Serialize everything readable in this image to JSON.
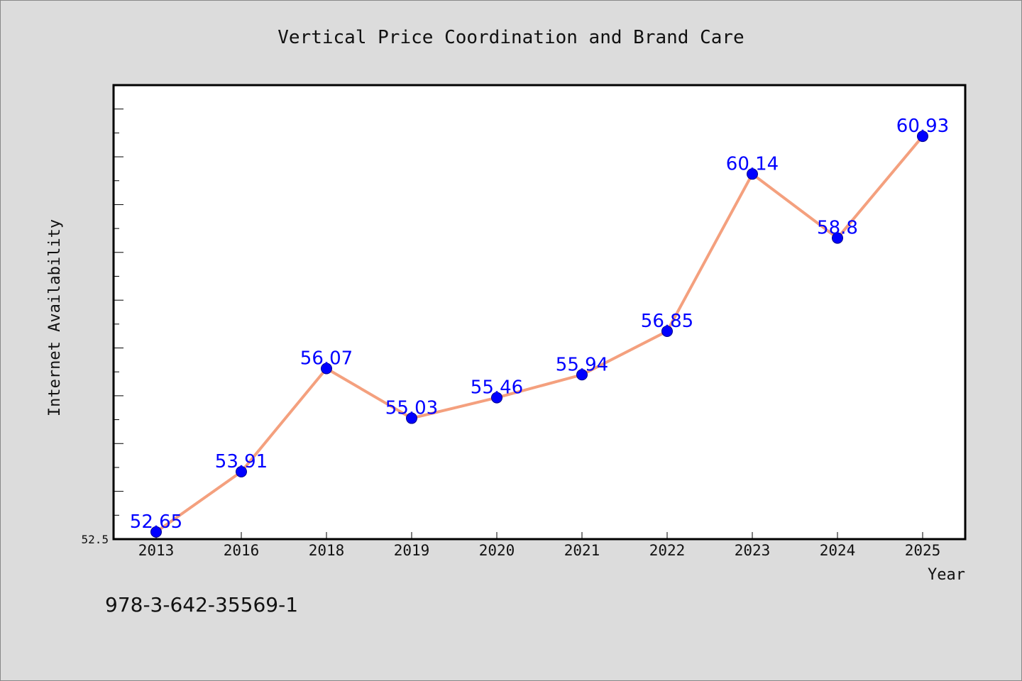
{
  "chart_data": {
    "type": "line",
    "title": "Vertical Price Coordination and Brand Care",
    "xlabel": "Year",
    "ylabel": "Internet Availability",
    "categories": [
      "2013",
      "2016",
      "2018",
      "2019",
      "2020",
      "2021",
      "2022",
      "2023",
      "2024",
      "2025"
    ],
    "series": [
      {
        "values": [
          52.65,
          53.91,
          56.07,
          55.03,
          55.46,
          55.94,
          56.85,
          60.14,
          58.8,
          60.93
        ],
        "data_labels": [
          "52.65",
          "53.91",
          "56.07",
          "55.03",
          "55.46",
          "55.94",
          "56.85",
          "60.14",
          "58.8",
          "60.93"
        ]
      }
    ],
    "ylim": [
      52.5,
      62.0
    ],
    "y_tick_labels": [
      "52.5"
    ],
    "grid": false,
    "legend": "none",
    "colors": {
      "line": "#f4a07e",
      "marker": "#0000ff",
      "data_label": "#0000ff",
      "background": "#dcdcdc",
      "plot_background": "#ffffff"
    }
  },
  "footnote": "978-3-642-35569-1"
}
